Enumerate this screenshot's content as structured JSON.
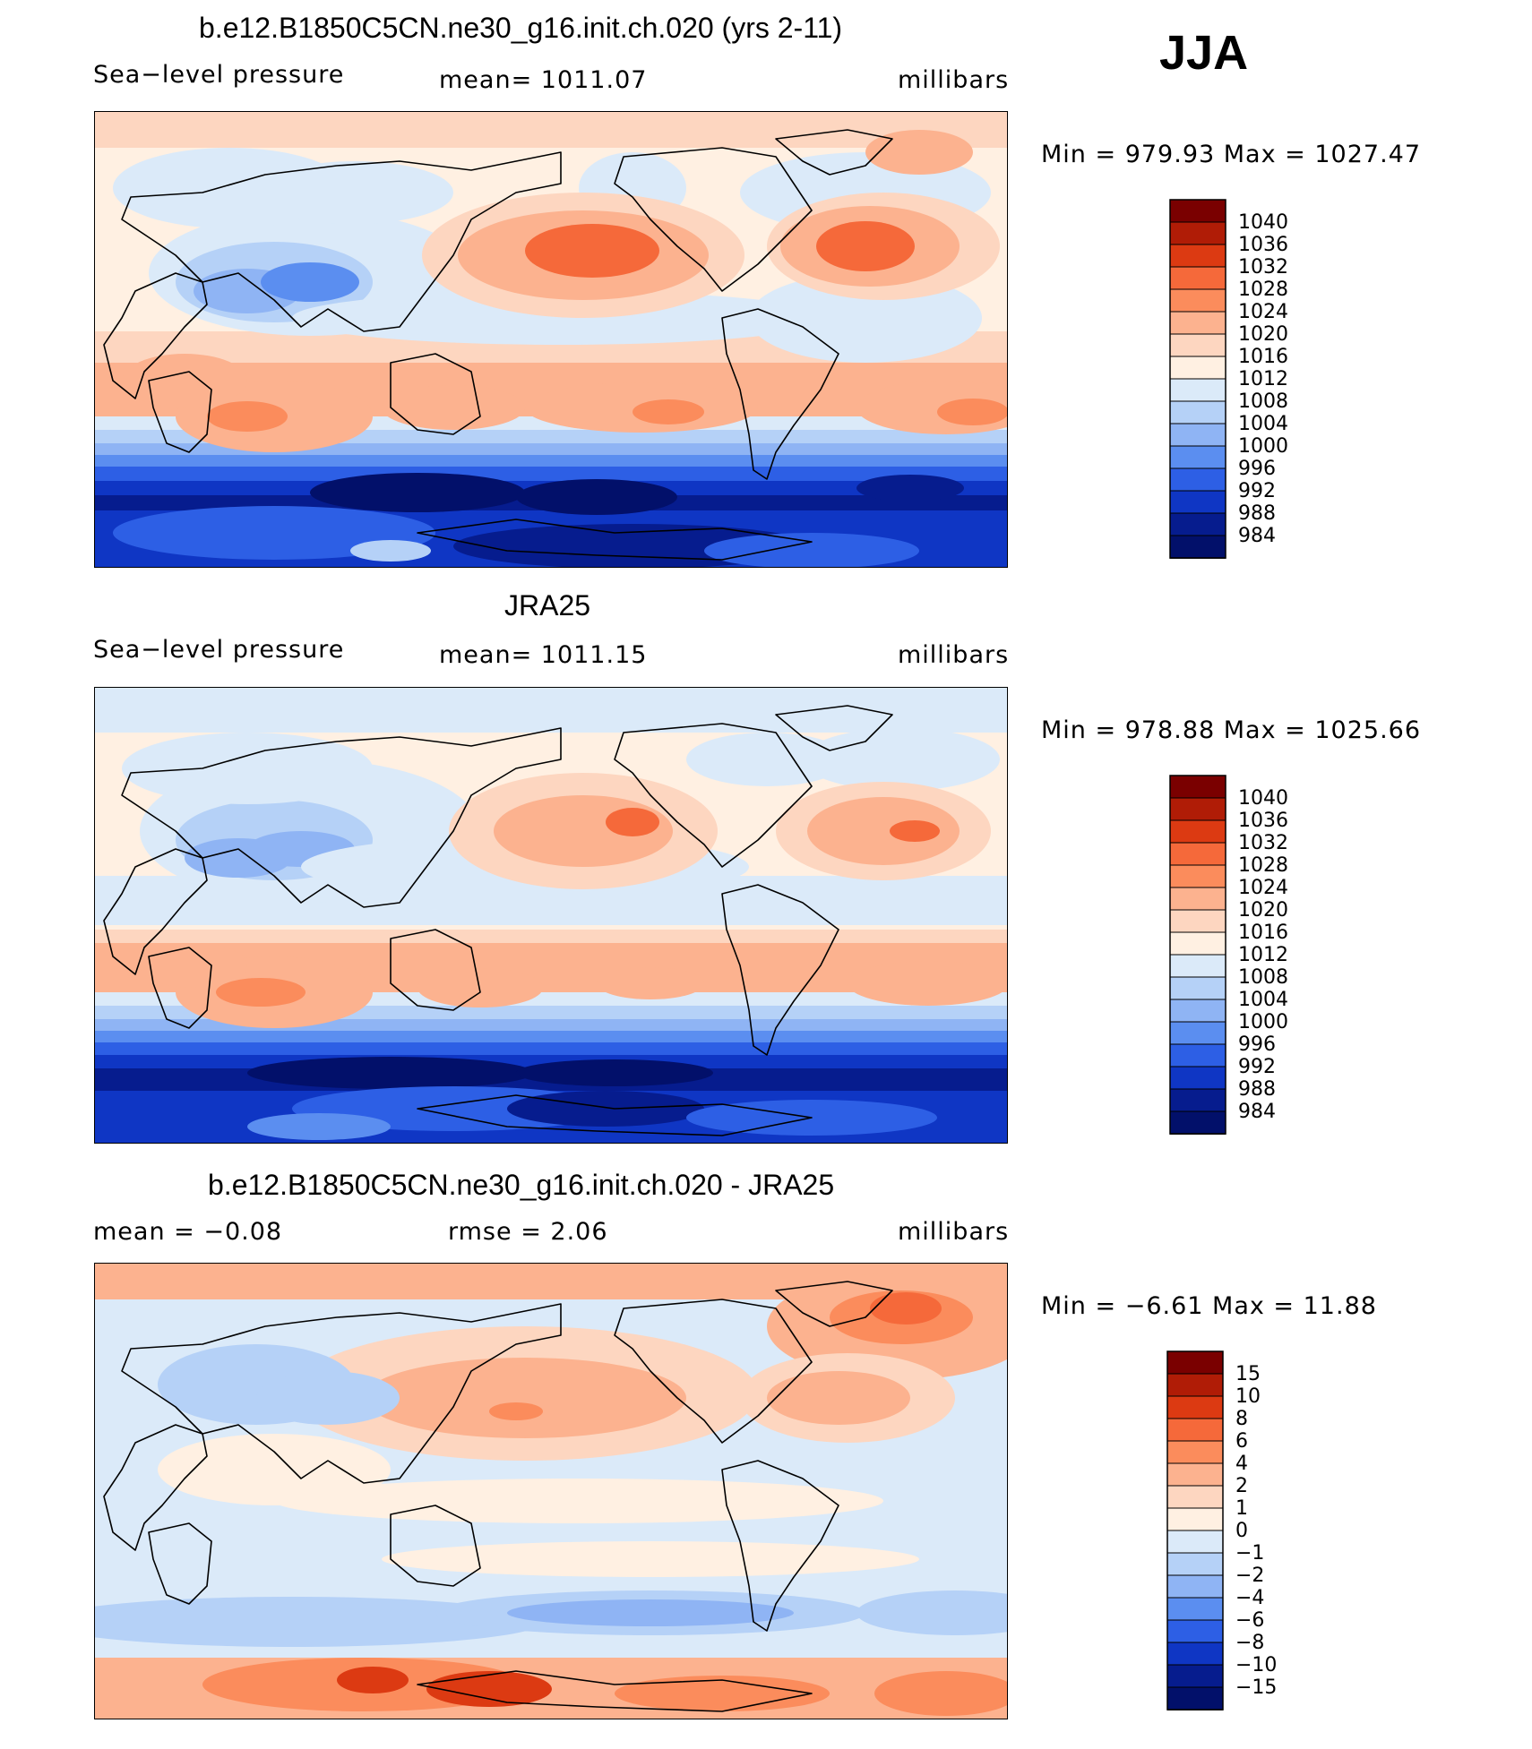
{
  "season": "JJA",
  "panels": [
    {
      "title": "b.e12.B1850C5CN.ne30_g16.init.ch.020 (yrs 2-11)",
      "left_label": "Sea−level pressure",
      "center_label": "mean=  1011.07",
      "units": "millibars",
      "minmax": "Min  =  979.93  Max  =  1027.47"
    },
    {
      "title": "JRA25",
      "left_label": "Sea−level pressure",
      "center_label": "mean=  1011.15",
      "units": "millibars",
      "minmax": "Min  =  978.88  Max  =  1025.66"
    },
    {
      "title": "b.e12.B1850C5CN.ne30_g16.init.ch.020 - JRA25",
      "left_label": "mean  =    −0.08",
      "center_label": "rmse  =     2.06",
      "units": "millibars",
      "minmax": "Min  =    −6.61  Max  =    11.88"
    }
  ],
  "chart_data": [
    {
      "type": "heatmap",
      "title": "b.e12.B1850C5CN.ne30_g16.init.ch.020 (yrs 2-11)",
      "variable": "Sea−level pressure",
      "units": "millibars",
      "mean": 1011.07,
      "min": 979.93,
      "max": 1027.47,
      "legend_levels": [
        "1040",
        "1036",
        "1032",
        "1028",
        "1024",
        "1020",
        "1016",
        "1012",
        "1008",
        "1004",
        "1000",
        "996",
        "992",
        "988",
        "984"
      ],
      "legend_colors": [
        "#7a0000",
        "#b01c06",
        "#dc3a12",
        "#f5693a",
        "#fb8c5c",
        "#fcb28f",
        "#fdd6c0",
        "#fff0e2",
        "#dbeaf9",
        "#b5d1f7",
        "#8fb4f4",
        "#5b8ef0",
        "#2d5fe5",
        "#0f36c4",
        "#061c8e",
        "#02106a"
      ],
      "legend_placement": "right"
    },
    {
      "type": "heatmap",
      "title": "JRA25",
      "variable": "Sea−level pressure",
      "units": "millibars",
      "mean": 1011.15,
      "min": 978.88,
      "max": 1025.66,
      "legend_levels": [
        "1040",
        "1036",
        "1032",
        "1028",
        "1024",
        "1020",
        "1016",
        "1012",
        "1008",
        "1004",
        "1000",
        "996",
        "992",
        "988",
        "984"
      ],
      "legend_colors": [
        "#7a0000",
        "#b01c06",
        "#dc3a12",
        "#f5693a",
        "#fb8c5c",
        "#fcb28f",
        "#fdd6c0",
        "#fff0e2",
        "#dbeaf9",
        "#b5d1f7",
        "#8fb4f4",
        "#5b8ef0",
        "#2d5fe5",
        "#0f36c4",
        "#061c8e",
        "#02106a"
      ],
      "legend_placement": "right"
    },
    {
      "type": "heatmap",
      "title": "b.e12.B1850C5CN.ne30_g16.init.ch.020 - JRA25",
      "units": "millibars",
      "mean": -0.08,
      "rmse": 2.06,
      "min": -6.61,
      "max": 11.88,
      "legend_levels": [
        "15",
        "10",
        "8",
        "6",
        "4",
        "2",
        "1",
        "0",
        "−1",
        "−2",
        "−4",
        "−6",
        "−8",
        "−10",
        "−15"
      ],
      "legend_colors": [
        "#7a0000",
        "#b01c06",
        "#dc3a12",
        "#f5693a",
        "#fb8c5c",
        "#fcb28f",
        "#fdd6c0",
        "#fff0e2",
        "#dbeaf9",
        "#b5d1f7",
        "#8fb4f4",
        "#5b8ef0",
        "#2d5fe5",
        "#0f36c4",
        "#061c8e",
        "#02106a"
      ],
      "legend_placement": "right"
    }
  ]
}
